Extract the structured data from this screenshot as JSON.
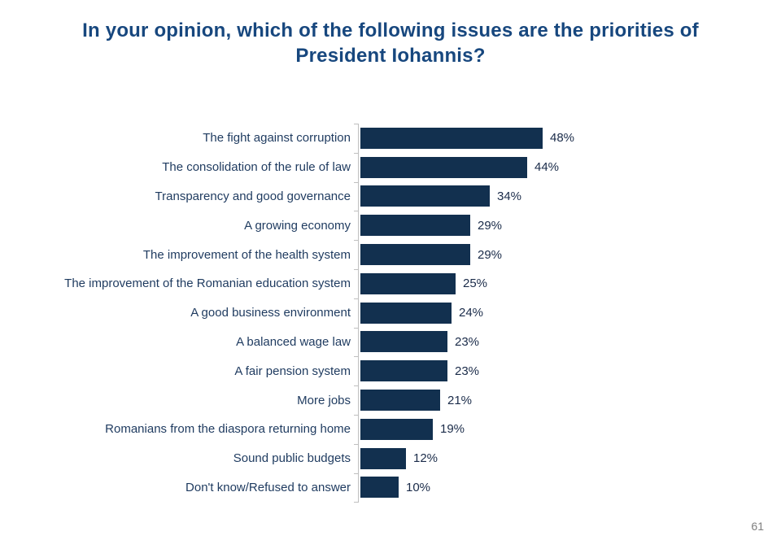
{
  "slide": {
    "title": "In your opinion, which of the following issues are the priorities of President Iohannis?",
    "title_lines": [
      "In your opinion, which of the following issues are the priorities of",
      "President Iohannis?"
    ],
    "page_number": "61"
  },
  "colors": {
    "background": "#ffffff",
    "title": "#17477e",
    "bar_fill": "#12304f",
    "category_label": "#1e3a5f",
    "value_label": "#1a2b49",
    "axis": "#bfbfbf",
    "page_number": "#7f7f7f"
  },
  "chart_data": {
    "type": "bar",
    "orientation": "horizontal",
    "title": "In your opinion, which of the following issues are the priorities of President Iohannis?",
    "categories": [
      "The fight against corruption",
      "The consolidation of the rule of law",
      "Transparency and good governance",
      "A growing economy",
      "The improvement of the health system",
      "The improvement of the Romanian education system",
      "A good business environment",
      "A balanced wage law",
      "A fair pension system",
      "More jobs",
      "Romanians from the diaspora returning home",
      "Sound public budgets",
      "Don't know/Refused to answer"
    ],
    "values": [
      48,
      44,
      34,
      29,
      29,
      25,
      24,
      23,
      23,
      21,
      19,
      12,
      10
    ],
    "value_suffix": "%",
    "xlabel": "",
    "ylabel": "",
    "xlim": [
      0,
      52
    ],
    "grid": false,
    "legend": false,
    "data_labels": true
  }
}
